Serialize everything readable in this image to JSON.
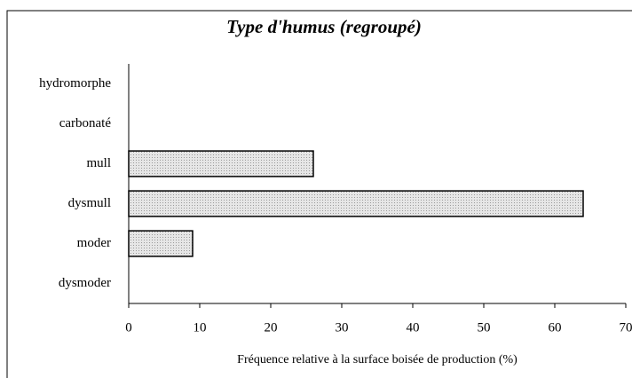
{
  "chart_data": {
    "type": "bar",
    "orientation": "horizontal",
    "title": "Type d'humus (regroupé)",
    "categories": [
      "hydromorphe",
      "carbonaté",
      "mull",
      "dysmull",
      "moder",
      "dysmoder"
    ],
    "values": [
      0,
      0,
      26,
      64,
      9,
      0
    ],
    "color": "#d9d9d9",
    "xlabel": "Fréquence relative à la surface boisée de production (%)",
    "xlim": [
      0,
      70
    ],
    "xticks": [
      0,
      10,
      20,
      30,
      40,
      50,
      60,
      70
    ],
    "grid": false
  }
}
